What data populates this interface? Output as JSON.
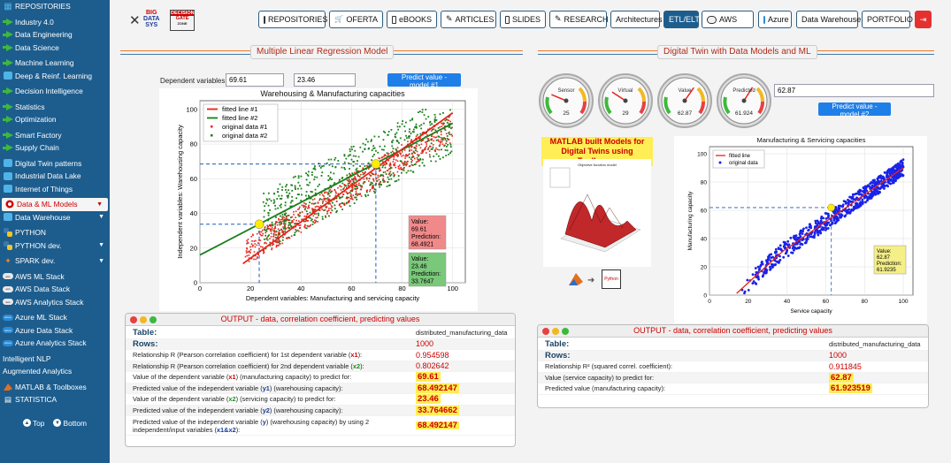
{
  "sidebar": {
    "items": [
      {
        "label": "REPOSITORIES",
        "icon": "grid-icon",
        "color": "#4fb3e8"
      },
      {
        "label": "Industry 4.0",
        "icon": "green-arrow-icon"
      },
      {
        "label": "Data Engineering",
        "icon": "green-arrow-icon"
      },
      {
        "label": "Data Science",
        "icon": "green-arrow-icon"
      },
      {
        "label": "Machine Learning",
        "icon": "green-arrow-icon"
      },
      {
        "label": "Deep & Reinf. Learning",
        "icon": "deep-learning-icon"
      },
      {
        "label": "Decision Intelligence",
        "icon": "green-arrow-icon"
      },
      {
        "label": "Statistics",
        "icon": "green-arrow-icon"
      },
      {
        "label": "Optimization",
        "icon": "green-arrow-icon"
      },
      {
        "label": "Smart Factory",
        "icon": "green-arrow-icon"
      },
      {
        "label": "Supply Chain",
        "icon": "green-arrow-icon"
      },
      {
        "label": "Digital Twin patterns",
        "icon": "digital-twin-icon"
      },
      {
        "label": "Industrial Data Lake",
        "icon": "data-lake-icon"
      },
      {
        "label": "Internet of Things",
        "icon": "iot-icon"
      },
      {
        "label": "Data & ML Models",
        "icon": "ml-models-icon",
        "active": true
      },
      {
        "label": "Data Warehouse",
        "icon": "data-warehouse-icon"
      },
      {
        "label": "PYTHON",
        "icon": "python-icon"
      },
      {
        "label": "PYTHON dev.",
        "icon": "python-icon"
      },
      {
        "label": "SPARK dev.",
        "icon": "spark-icon"
      },
      {
        "label": "AWS ML Stack",
        "icon": "aws-icon"
      },
      {
        "label": "AWS Data Stack",
        "icon": "aws-icon"
      },
      {
        "label": "AWS Analytics Stack",
        "icon": "aws-icon"
      },
      {
        "label": "Azure ML Stack",
        "icon": "azure-icon"
      },
      {
        "label": "Azure Data Stack",
        "icon": "azure-icon"
      },
      {
        "label": "Azure Analytics Stack",
        "icon": "azure-icon"
      },
      {
        "label": "Intelligent NLP"
      },
      {
        "label": "Augmented Analytics"
      },
      {
        "label": "MATLAB & Toolboxes",
        "icon": "matlab-icon"
      },
      {
        "label": "STATISTICA",
        "icon": "statistica-icon"
      }
    ],
    "top_label": "Top",
    "bottom_label": "Bottom",
    "aws_icon_text": "aws",
    "azure_icon_text": "azure"
  },
  "topbar": {
    "logo_text": [
      "BIG",
      "DATA",
      "SYS"
    ],
    "logo2_text": [
      "DECISION",
      "GATE"
    ],
    "logo2_sub": "ZONE",
    "nav": [
      {
        "label": "REPOSITORIES",
        "icon": "repo-icon"
      },
      {
        "label": "OFERTA",
        "icon": "cart-icon"
      },
      {
        "label": "eBOOKS",
        "icon": "ebook-icon"
      },
      {
        "label": "ARTICLES",
        "icon": "pencil-icon"
      },
      {
        "label": "SLIDES",
        "icon": "slides-icon"
      },
      {
        "label": "RESEARCH",
        "icon": "pencil-icon"
      },
      {
        "label": "Architectures"
      },
      {
        "label": "ETL/ELT",
        "active": true
      },
      {
        "label": "AWS",
        "icon": "aws-icon"
      },
      {
        "label": "Azure",
        "icon": "azure-icon"
      },
      {
        "label": "Data Warehouse"
      },
      {
        "label": "PORTFOLIO"
      },
      {
        "label": "",
        "icon": "logout-icon"
      }
    ]
  },
  "left": {
    "title": "Multiple Linear Regression Model",
    "dep_label": "Dependent variables:",
    "input1": "69.61",
    "input2": "23.46",
    "predict_btn": "Predict value - model #1",
    "output_title": "OUTPUT - data, correlation coefficient, predicting values",
    "rows": [
      {
        "k": "Table:",
        "v": "distributed_manufacturing_data",
        "kind": "big"
      },
      {
        "k": "Rows:",
        "v": "1000",
        "kind": "big-red"
      },
      {
        "k_parts": [
          "Relationship R (Pearson correlation coefficient) for 1st dependent variable (",
          "x1",
          "):"
        ],
        "c": "r",
        "v": "0.954598",
        "kind": "red"
      },
      {
        "k_parts": [
          "Relationship R (Pearson correlation coefficient) for 2nd dependent variable (",
          "x2",
          "):"
        ],
        "c": "g",
        "v": "0.802642",
        "kind": "red"
      },
      {
        "k_parts": [
          "Value of the dependent variable (",
          "x1",
          ") (manufacturing capacity) to predict for:"
        ],
        "c": "r",
        "v": "69.61",
        "kind": "hl"
      },
      {
        "k_parts": [
          "Predicted value of the independent variable (",
          "y1",
          ") (warehousing capacity):"
        ],
        "c": "b",
        "v": "68.492147",
        "kind": "hl"
      },
      {
        "k_parts": [
          "Value of the dependent variable (",
          "x2",
          ") (servicing capacity) to predict for:"
        ],
        "c": "g",
        "v": "23.46",
        "kind": "hl"
      },
      {
        "k_parts": [
          "Predicted value of the independent variable (",
          "y2",
          ") (warehousing capacity):"
        ],
        "c": "b",
        "v": "33.764662",
        "kind": "hl"
      },
      {
        "k_parts": [
          "Predicted value of the independent variable (",
          "y",
          ") (warehousing capacity) by using 2 independent/input variables (",
          "x1&x2",
          "):"
        ],
        "c": "b",
        "v": "68.492147",
        "kind": "hl"
      }
    ]
  },
  "right": {
    "title": "Digital Twin with Data Models and ML",
    "gauges": [
      {
        "label": "Sensor",
        "value": 25
      },
      {
        "label": "Virtual",
        "value": 29
      },
      {
        "label": "Value",
        "value": "62.87"
      },
      {
        "label": "Predicted",
        "value": "61.924"
      }
    ],
    "input": "62.87",
    "predict_btn": "Predict value - model #2",
    "matlab_title": "MATLAB built Models for Digital Twins using Toolboxes",
    "matlab_chart_title": "Objective function model",
    "python_icon_label": "Python",
    "output_title": "OUTPUT - data, correlation coefficient, predicting values",
    "rows": [
      {
        "k": "Table:",
        "v": "distributed_manufacturing_data",
        "kind": "big"
      },
      {
        "k": "Rows:",
        "v": "1000",
        "kind": "big-red"
      },
      {
        "k": "Relationship R² (squared correl. coefficient):",
        "v": "0.911845",
        "kind": "red"
      },
      {
        "k": "Value (service capacity) to predict for:",
        "v": "62.87",
        "kind": "hl"
      },
      {
        "k": "Predicted value (manufacturing capacity):",
        "v": "61.923519",
        "kind": "hl"
      }
    ]
  },
  "chart_data": [
    {
      "type": "scatter",
      "title": "Warehousing & Manufacturing capacities",
      "xlabel": "Dependent variables: Manufacturing and servicing capacity",
      "ylabel": "Independent variables: Warehousing capacity",
      "xlim": [
        0,
        105
      ],
      "ylim": [
        0,
        105
      ],
      "xticks": [
        0,
        20,
        40,
        60,
        80,
        100
      ],
      "yticks": [
        0,
        20,
        40,
        60,
        80,
        100
      ],
      "grid": true,
      "legend_position": "top-left",
      "series": [
        {
          "name": "fitted line #1",
          "kind": "line",
          "color": "#e8221a",
          "x": [
            17,
            100
          ],
          "y": [
            11,
            98
          ]
        },
        {
          "name": "fitted line #2",
          "kind": "line",
          "color": "#1a7f1a",
          "x": [
            0,
            100
          ],
          "y": [
            16,
            92
          ]
        },
        {
          "name": "original data #1",
          "kind": "points",
          "color": "#e8221a"
        },
        {
          "name": "original data #2",
          "kind": "points",
          "color": "#1a7f1a"
        }
      ],
      "markers": [
        {
          "x": 23.46,
          "y": 33.76,
          "color": "#ffee00"
        },
        {
          "x": 69.61,
          "y": 68.49,
          "color": "#ffee00"
        }
      ],
      "annotations": [
        {
          "lines": [
            "Value:",
            "69.61",
            "Prediction:",
            "68.4921"
          ],
          "color": "#f08a8a"
        },
        {
          "lines": [
            "Value:",
            "23.46",
            "Prediction:",
            "33.7647"
          ],
          "color": "#7ac87a"
        }
      ]
    },
    {
      "type": "scatter",
      "title": "Manufacturing & Servicing capacities",
      "xlabel": "Service capacity",
      "ylabel": "Manufacturing capacity",
      "xlim": [
        0,
        105
      ],
      "ylim": [
        0,
        105
      ],
      "xticks": [
        0,
        20,
        40,
        60,
        80,
        100
      ],
      "yticks": [
        0,
        20,
        40,
        60,
        80,
        100
      ],
      "grid": true,
      "legend_position": "top-left",
      "series": [
        {
          "name": "fitted line",
          "kind": "curve",
          "color": "#e8221a"
        },
        {
          "name": "original data",
          "kind": "points",
          "color": "#1a22e8"
        }
      ],
      "markers": [
        {
          "x": 62.87,
          "y": 61.92,
          "color": "#ffee00"
        }
      ],
      "annotations": [
        {
          "lines": [
            "Value:",
            "62.87",
            "Prediction:",
            "61.9235"
          ],
          "color": "#f5ef88"
        }
      ]
    }
  ]
}
